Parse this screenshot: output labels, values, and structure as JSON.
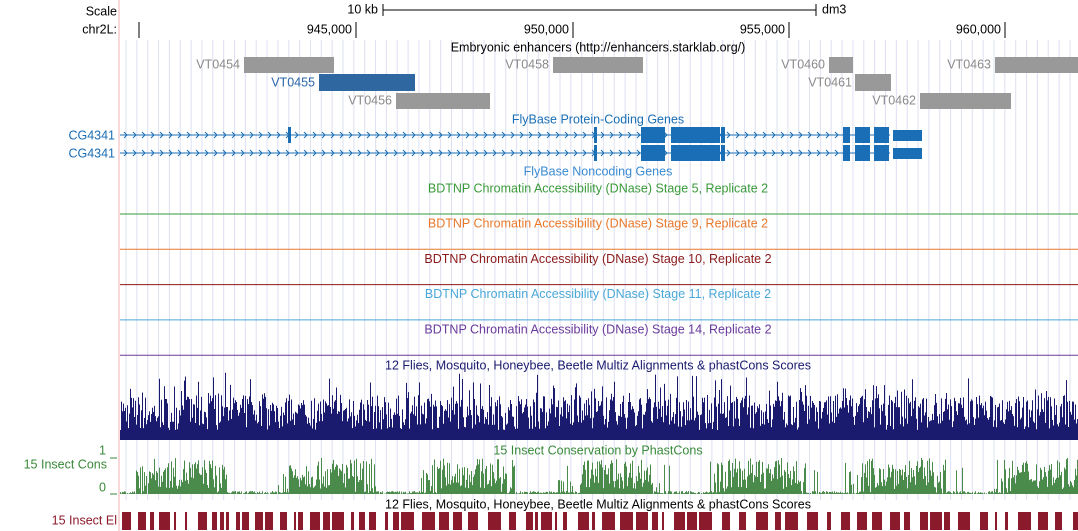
{
  "header": {
    "scale_label": "Scale",
    "scale_bar": "10 kb",
    "assembly": "dm3",
    "chrom": "chr2L:",
    "positions": [
      "945,000",
      "950,000",
      "955,000",
      "960,000"
    ]
  },
  "enhancers": {
    "title": "Embryonic enhancers (http://enhancers.starklab.org/)",
    "items": [
      "VT0454",
      "VT0455",
      "VT0456",
      "VT0458",
      "VT0460",
      "VT0461",
      "VT0462",
      "VT0463"
    ]
  },
  "genes": {
    "title": "FlyBase Protein-Coding Genes",
    "rows": [
      "CG4341",
      "CG4341"
    ]
  },
  "noncoding": {
    "title": "FlyBase Noncoding Genes"
  },
  "dnase": [
    {
      "title": "BDTNP Chromatin Accessibility (DNase) Stage 5, Replicate 2",
      "color": "#3a9a3a"
    },
    {
      "title": "BDTNP Chromatin Accessibility (DNase) Stage 9, Replicate 2",
      "color": "#e8782a"
    },
    {
      "title": "BDTNP Chromatin Accessibility (DNase) Stage 10, Replicate 2",
      "color": "#8b1a1a"
    },
    {
      "title": "BDTNP Chromatin Accessibility (DNase) Stage 11, Replicate 2",
      "color": "#4aa8d8"
    },
    {
      "title": "BDTNP Chromatin Accessibility (DNase) Stage 14, Replicate 2",
      "color": "#6a3a9a"
    }
  ],
  "multiz": {
    "title": "12 Flies, Mosquito, Honeybee, Beetle Multiz Alignments & phastCons Scores"
  },
  "insect_cons": {
    "title": "15 Insect Conservation by PhastCons",
    "label": "15 Insect Cons",
    "max": "1",
    "min": "0"
  },
  "multiz2": {
    "title": "12 Flies, Mosquito, Honeybee, Beetle Multiz Alignments & phastCons Scores"
  },
  "insect_el": {
    "label": "15 Insect El"
  }
}
